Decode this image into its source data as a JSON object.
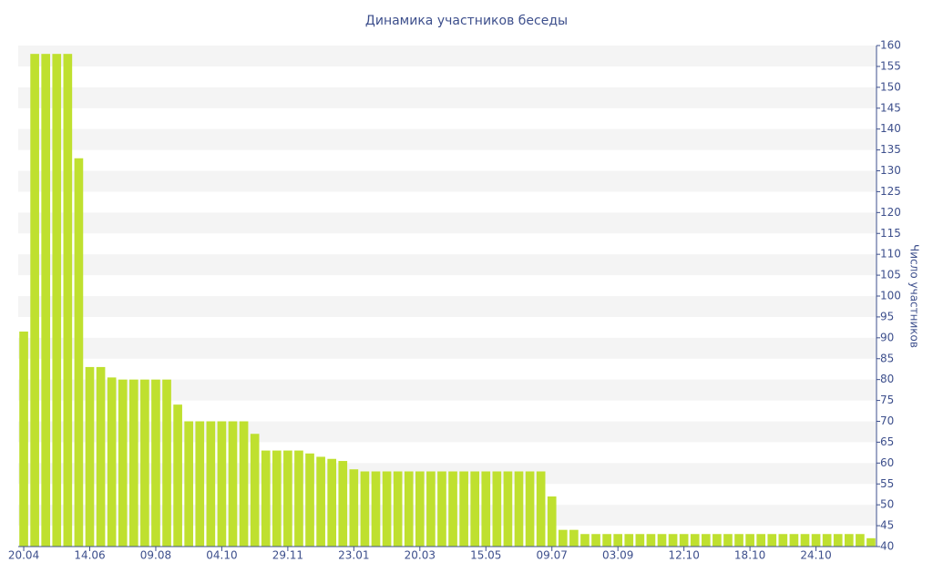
{
  "chart_data": {
    "type": "bar",
    "title": "Динамика участников беседы",
    "y_axis_label": "Число участников",
    "categories": [
      "20.04",
      null,
      null,
      null,
      null,
      null,
      "14.06",
      null,
      null,
      null,
      null,
      null,
      "09.08",
      null,
      null,
      null,
      null,
      null,
      "04.10",
      null,
      null,
      null,
      null,
      null,
      "29.11",
      null,
      null,
      null,
      null,
      null,
      "23.01",
      null,
      null,
      null,
      null,
      null,
      "20.03",
      null,
      null,
      null,
      null,
      null,
      "15.05",
      null,
      null,
      null,
      null,
      null,
      "09.07",
      null,
      null,
      null,
      null,
      null,
      "03.09",
      null,
      null,
      null,
      null,
      null,
      "12.10",
      null,
      null,
      null,
      null,
      null,
      "18.10",
      null,
      null,
      null,
      null,
      null,
      "24.10",
      null,
      null,
      null,
      null,
      null
    ],
    "values": [
      91.5,
      158,
      158,
      158,
      158,
      133,
      83,
      83,
      80.5,
      80,
      80,
      80,
      80,
      80,
      74,
      70,
      70,
      70,
      70,
      70,
      70,
      67,
      63,
      63,
      63,
      63,
      62.3,
      61.5,
      61,
      60.5,
      58.5,
      58,
      58,
      58,
      58,
      58,
      58,
      58,
      58,
      58,
      58,
      58,
      58,
      58,
      58,
      58,
      58,
      58,
      52,
      44,
      44,
      43,
      43,
      43,
      43,
      43,
      43,
      43,
      43,
      43,
      43,
      43,
      43,
      43,
      43,
      43,
      43,
      43,
      43,
      43,
      43,
      43,
      43,
      43,
      43,
      43,
      43,
      42
    ],
    "color": "#bfe02f",
    "ylim": [
      40,
      160
    ],
    "yticks": [
      40,
      45,
      50,
      55,
      60,
      65,
      70,
      75,
      80,
      85,
      90,
      95,
      100,
      105,
      110,
      115,
      120,
      125,
      130,
      135,
      140,
      145,
      150,
      155,
      160
    ],
    "grid": true,
    "y_axis_side": "right"
  }
}
